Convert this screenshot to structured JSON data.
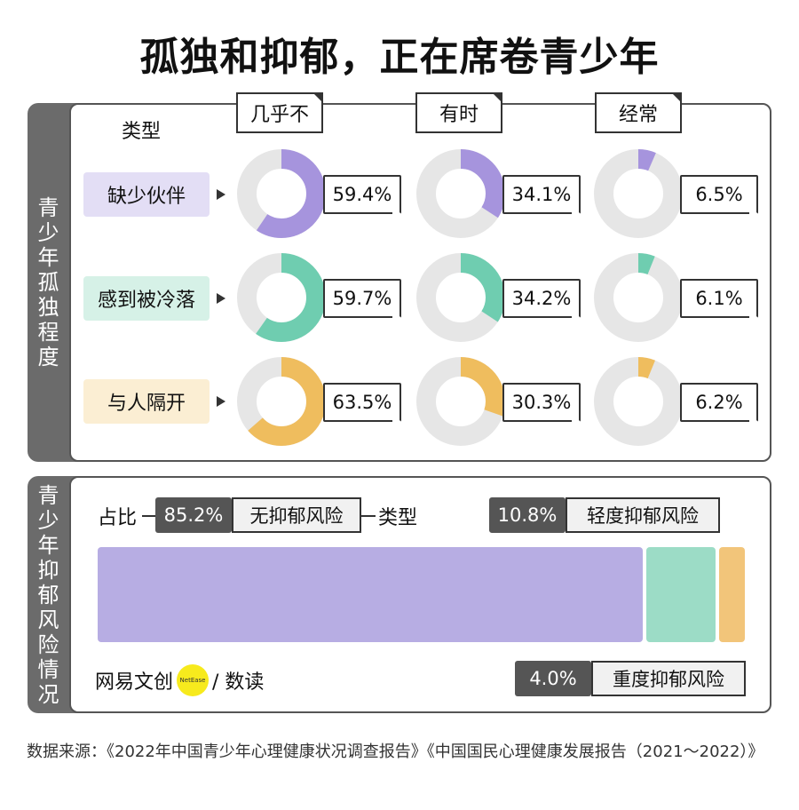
{
  "title": "孤独和抑郁，正在席卷青少年",
  "panel1": {
    "side_label": "青少年孤独程度",
    "type_header": "类型",
    "columns": [
      "几乎不",
      "有时",
      "经常"
    ],
    "rows": [
      {
        "label": "缺少伙伴",
        "color": "#a694dd",
        "bg": "#e3def5",
        "values": [
          "59.4%",
          "34.1%",
          "6.5%"
        ]
      },
      {
        "label": "感到被冷落",
        "color": "#6fcdb0",
        "bg": "#d6f1e7",
        "values": [
          "59.7%",
          "34.2%",
          "6.1%"
        ]
      },
      {
        "label": "与人隔开",
        "color": "#efbd5e",
        "bg": "#fbeed3",
        "values": [
          "63.5%",
          "30.3%",
          "6.2%"
        ]
      }
    ],
    "ring_bg": "#e6e6e6"
  },
  "panel2": {
    "side_label": "青少年抑郁风险情况",
    "ratio_label": "占比",
    "type_label": "类型",
    "items": [
      {
        "pct": "85.2%",
        "name": "无抑郁风险",
        "color": "#b7ade3"
      },
      {
        "pct": "10.8%",
        "name": "轻度抑郁风险",
        "color": "#9cdcc6"
      },
      {
        "pct": "4.0%",
        "name": "重度抑郁风险",
        "color": "#f2c57a"
      }
    ],
    "logo_left": "网易文创",
    "logo_dot": "NetEase",
    "logo_right": "/ 数读"
  },
  "source": "数据来源：《2022年中国青少年心理健康状况调查报告》《中国国民心理健康发展报告（2021～2022）》",
  "chart_data": [
    {
      "type": "pie",
      "title": "青少年孤独程度",
      "categories": [
        "几乎不",
        "有时",
        "经常"
      ],
      "series": [
        {
          "name": "缺少伙伴",
          "values": [
            59.4,
            34.1,
            6.5
          ]
        },
        {
          "name": "感到被冷落",
          "values": [
            59.7,
            34.2,
            6.1
          ]
        },
        {
          "name": "与人隔开",
          "values": [
            63.5,
            30.3,
            6.2
          ]
        }
      ]
    },
    {
      "type": "bar",
      "title": "青少年抑郁风险情况",
      "categories": [
        "无抑郁风险",
        "轻度抑郁风险",
        "重度抑郁风险"
      ],
      "values": [
        85.2,
        10.8,
        4.0
      ]
    }
  ]
}
